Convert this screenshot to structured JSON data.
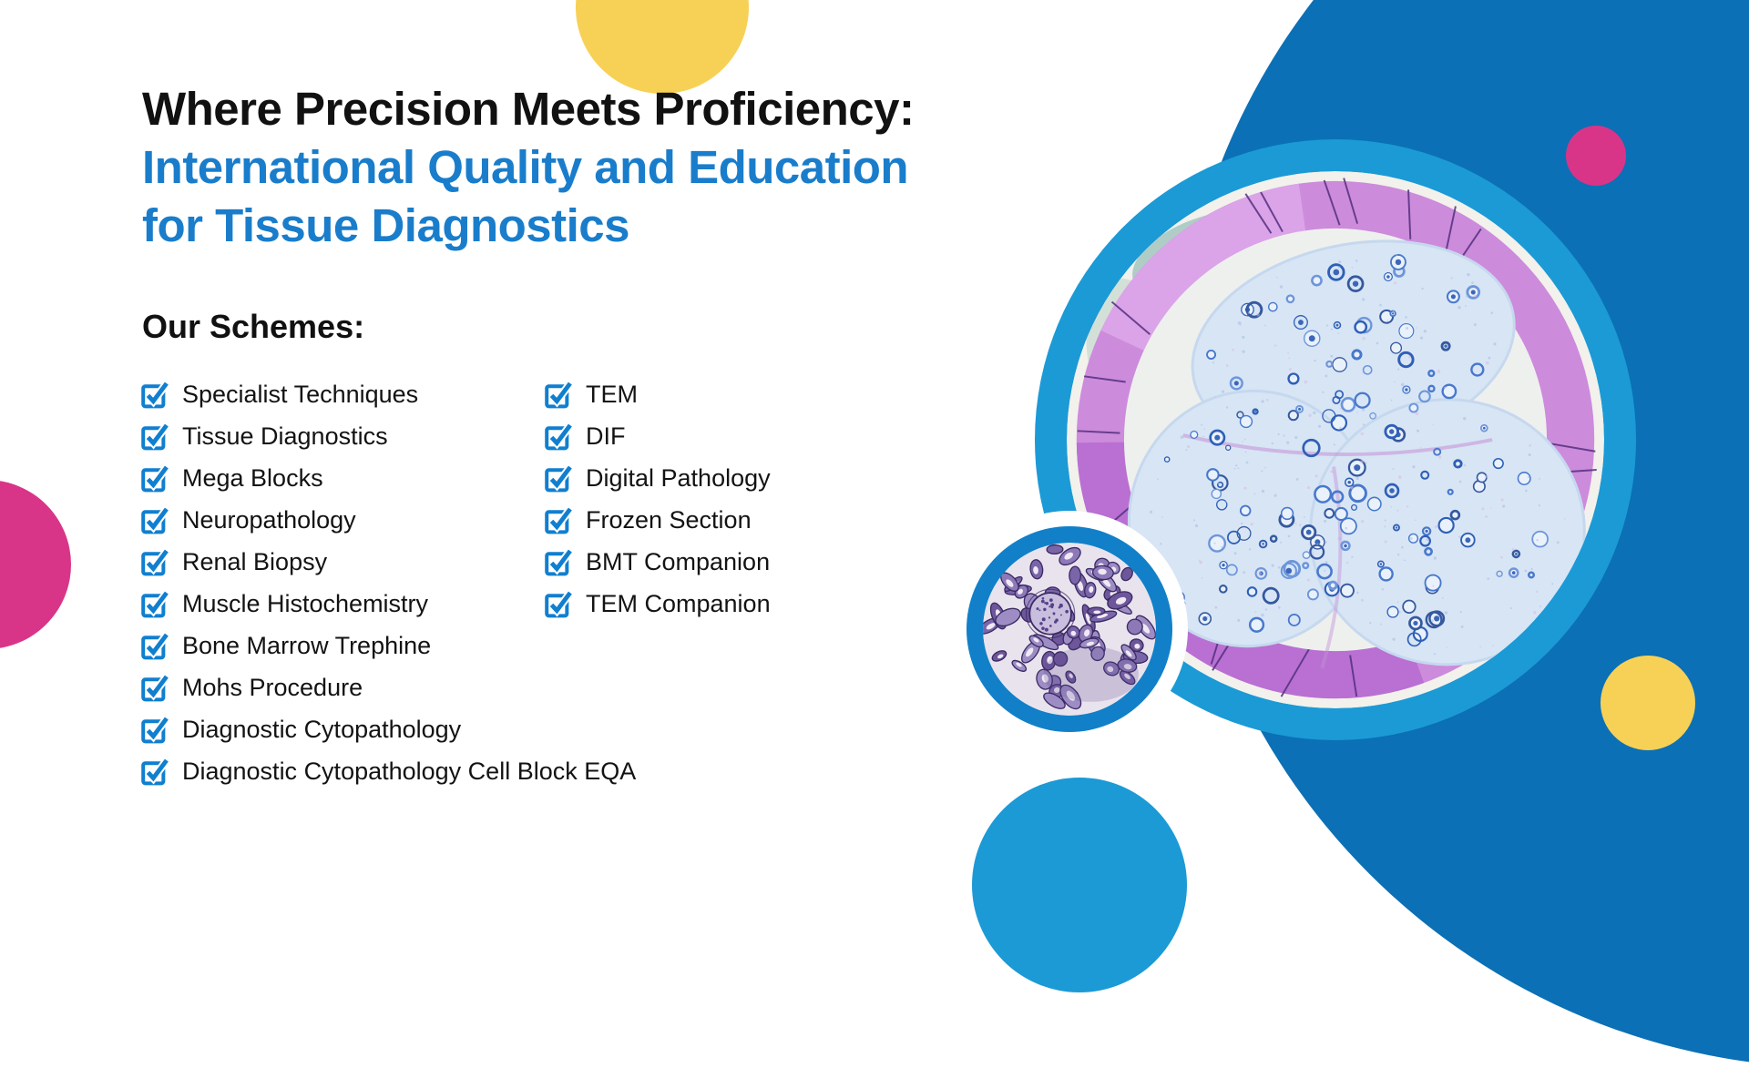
{
  "title": {
    "line1": "Where Precision Meets Proficiency:",
    "line2": "International Quality and Education",
    "line3": "for Tissue Diagnostics",
    "line1_color": "#111111",
    "accent_color": "#197dcb"
  },
  "schemes": {
    "heading": "Our Schemes:",
    "checkbox_color": "#107fd0",
    "column1": [
      "Specialist Techniques",
      "Tissue Diagnostics",
      "Mega Blocks",
      "Neuropathology",
      "Renal Biopsy",
      "Muscle Histochemistry",
      "Bone Marrow Trephine",
      "Mohs Procedure",
      "Diagnostic Cytopathology",
      "Diagnostic Cytopathology Cell Block EQA"
    ],
    "column2": [
      "TEM",
      "DIF",
      "Digital Pathology",
      "Frozen Section",
      "BMT Companion",
      "TEM Companion"
    ]
  },
  "decor_colors": {
    "dark_blue": "#0b70b5",
    "light_blue": "#1b9ad6",
    "pink": "#d83589",
    "yellow": "#f7d156",
    "small_ring_blue": "#1180c8",
    "background": "#ffffff"
  },
  "images": [
    {
      "name": "nerve-biopsy-histology-photo"
    },
    {
      "name": "renal-biopsy-histology-photo"
    }
  ]
}
